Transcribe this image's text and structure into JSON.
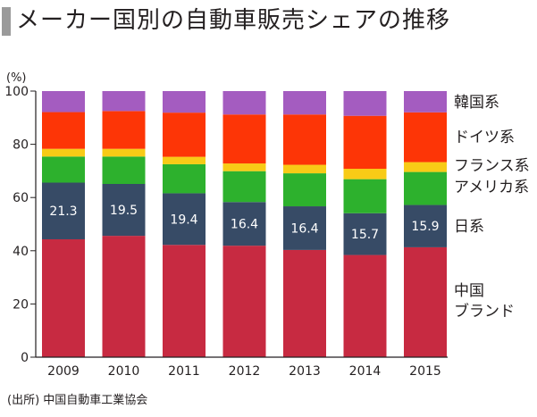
{
  "title": "メーカー国別の自動車販売シェアの推移",
  "source": "(出所) 中国自動車工業協会",
  "colors": {
    "中国ブランド": "#c72a41",
    "日系": "#374b66",
    "アメリカ系": "#2db12d",
    "フランス系": "#f8cb16",
    "ドイツ系": "#fd3506",
    "韓国系": "#a45cc0",
    "axis": "#231f20"
  },
  "chart_data": {
    "type": "bar",
    "stacked": true,
    "title": "メーカー国別の自動車販売シェアの推移",
    "unit_label": "(%)",
    "xlabel": "",
    "ylabel": "(%)",
    "ylim": [
      0,
      100
    ],
    "yticks": [
      0,
      20,
      40,
      60,
      80,
      100
    ],
    "categories": [
      "2009",
      "2010",
      "2011",
      "2012",
      "2013",
      "2014",
      "2015"
    ],
    "series": [
      {
        "name": "中国ブランド",
        "label": [
          "中国",
          "ブランド"
        ],
        "values": [
          44.3,
          45.6,
          42.2,
          41.9,
          40.3,
          38.4,
          41.3
        ]
      },
      {
        "name": "日系",
        "label": [
          "日系"
        ],
        "values": [
          21.3,
          19.5,
          19.4,
          16.4,
          16.4,
          15.7,
          15.9
        ],
        "show_values": true
      },
      {
        "name": "アメリカ系",
        "label": [
          "アメリカ系"
        ],
        "values": [
          9.8,
          10.3,
          10.9,
          11.6,
          12.4,
          12.8,
          12.4
        ]
      },
      {
        "name": "フランス系",
        "label": [
          "フランス系"
        ],
        "values": [
          2.9,
          2.9,
          2.8,
          2.9,
          3.2,
          3.9,
          3.7
        ]
      },
      {
        "name": "ドイツ系",
        "label": [
          "ドイツ系"
        ],
        "values": [
          13.8,
          14.2,
          16.6,
          18.4,
          18.9,
          19.9,
          18.7
        ]
      },
      {
        "name": "韓国系",
        "label": [
          "韓国系"
        ],
        "values": [
          7.9,
          7.5,
          8.1,
          8.8,
          8.8,
          9.3,
          8.0
        ]
      }
    ],
    "legend_placement": "right, aligned with stacked segments"
  }
}
